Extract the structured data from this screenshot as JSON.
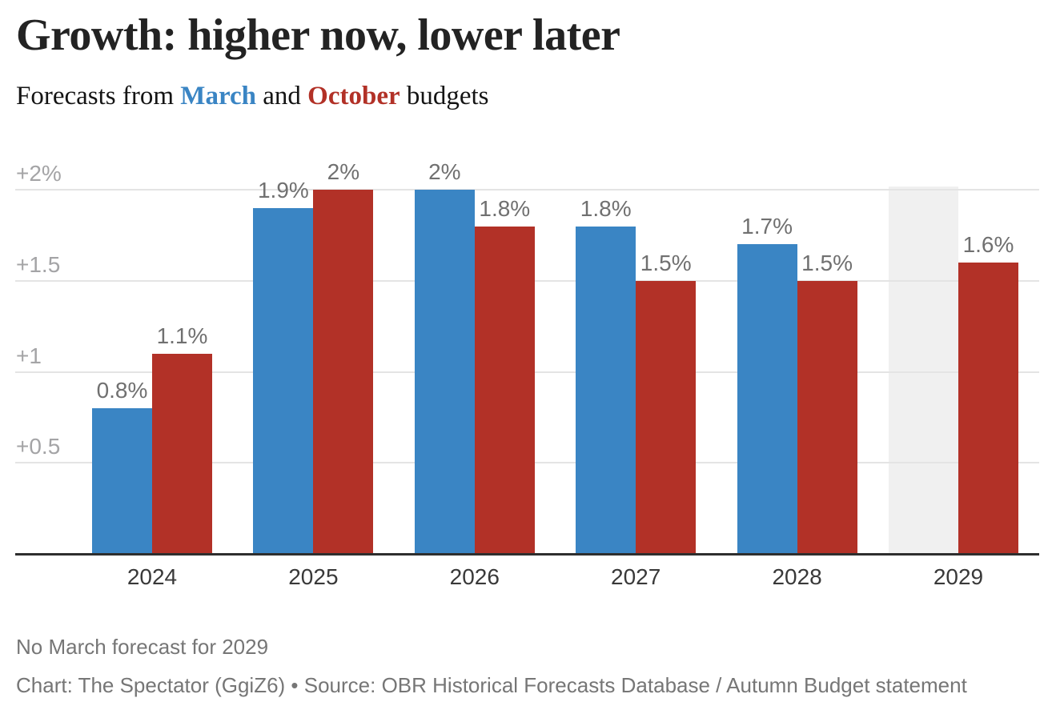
{
  "header": {
    "title": "Growth: higher now, lower later",
    "subtitle_prefix": "Forecasts from ",
    "subtitle_march": "March",
    "subtitle_mid": " and ",
    "subtitle_october": "October",
    "subtitle_suffix": " budgets"
  },
  "chart_data": {
    "type": "bar",
    "title": "Growth: higher now, lower later",
    "subtitle": "Forecasts from March and October budgets",
    "categories": [
      "2024",
      "2025",
      "2026",
      "2027",
      "2028",
      "2029"
    ],
    "series": [
      {
        "name": "March",
        "color": "#3a85c4",
        "values": [
          0.8,
          1.9,
          2,
          1.8,
          1.7,
          null
        ],
        "labels": [
          "0.8%",
          "1.9%",
          "2%",
          "1.8%",
          "1.7%",
          null
        ]
      },
      {
        "name": "October",
        "color": "#b23127",
        "values": [
          1.1,
          2,
          1.8,
          1.5,
          1.5,
          1.6
        ],
        "labels": [
          "1.1%",
          "2%",
          "1.8%",
          "1.5%",
          "1.5%",
          "1.6%"
        ]
      }
    ],
    "y_ticks": [
      {
        "value": 0.5,
        "label": "+0.5"
      },
      {
        "value": 1,
        "label": "+1"
      },
      {
        "value": 1.5,
        "label": "+1.5"
      },
      {
        "value": 2,
        "label": "+2%"
      }
    ],
    "ylim": [
      0,
      2.1
    ],
    "grid": "horizontal",
    "legend_position": "none",
    "highlight": {
      "category": "2029",
      "missing_series": "March",
      "color": "#f0f0f0"
    }
  },
  "footer": {
    "note": "No March forecast for 2029",
    "source": "Chart: The Spectator (GgiZ6) • Source: OBR Historical Forecasts Database / Autumn Budget statement"
  },
  "colors": {
    "march": "#3a85c4",
    "october": "#b23127",
    "highlight": "#f0f0f0",
    "gridline": "#e4e4e4",
    "axis": "#2e2e2e",
    "tick_label": "#a4a4a6",
    "value_label": "#707070",
    "year_label": "#393939",
    "note_text": "#767676"
  }
}
